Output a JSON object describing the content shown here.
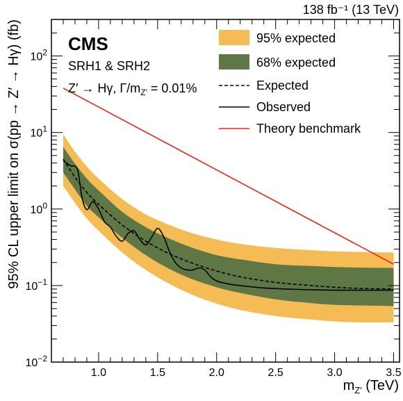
{
  "header": {
    "lumi_label": "138 fb⁻¹ (13 TeV)"
  },
  "labels": {
    "experiment": "CMS",
    "region": "SRH1 & SRH2",
    "process": "Z′ → Hγ,  Γ/mZ′ = 0.01%"
  },
  "chart_data": {
    "type": "line",
    "title": "",
    "xlabel": "mZ′ (TeV)",
    "ylabel": "95% CL upper limit on σ(pp → Z′ → Hγ) (fb)",
    "xlim": [
      0.6,
      3.55
    ],
    "ylim": [
      0.01,
      300
    ],
    "yscale": "log",
    "x_ticks": [
      "1.0",
      "1.5",
      "2.0",
      "2.5",
      "3.0",
      "3.5"
    ],
    "y_ticks": [
      "10⁻²",
      "10⁻¹",
      "10⁰",
      "10¹",
      "10²"
    ],
    "legend_position": "top-right",
    "colors": {
      "band95": "#f5bb54",
      "band68": "#5e7744",
      "theory": "#e8241c",
      "expected": "#000000",
      "observed": "#000000"
    },
    "series": [
      {
        "name": "95% expected",
        "x": [
          0.7,
          0.8,
          0.9,
          1.0,
          1.2,
          1.4,
          1.6,
          1.8,
          2.0,
          2.2,
          2.5,
          2.8,
          3.0,
          3.2,
          3.5
        ],
        "low": [
          2.0,
          1.2,
          0.75,
          0.52,
          0.27,
          0.16,
          0.105,
          0.075,
          0.058,
          0.048,
          0.04,
          0.036,
          0.034,
          0.033,
          0.033
        ],
        "high": [
          9.5,
          5.6,
          3.6,
          2.5,
          1.35,
          0.85,
          0.62,
          0.48,
          0.4,
          0.35,
          0.31,
          0.29,
          0.28,
          0.275,
          0.27
        ]
      },
      {
        "name": "68% expected",
        "x": [
          0.7,
          0.8,
          0.9,
          1.0,
          1.2,
          1.4,
          1.6,
          1.8,
          2.0,
          2.2,
          2.5,
          2.8,
          3.0,
          3.2,
          3.5
        ],
        "low": [
          3.0,
          1.8,
          1.1,
          0.78,
          0.42,
          0.25,
          0.165,
          0.12,
          0.095,
          0.08,
          0.066,
          0.059,
          0.056,
          0.055,
          0.054
        ],
        "high": [
          6.5,
          3.9,
          2.5,
          1.75,
          0.92,
          0.58,
          0.41,
          0.31,
          0.25,
          0.22,
          0.19,
          0.18,
          0.175,
          0.172,
          0.17
        ]
      },
      {
        "name": "Expected",
        "x": [
          0.7,
          0.8,
          0.9,
          1.0,
          1.2,
          1.4,
          1.6,
          1.8,
          2.0,
          2.2,
          2.5,
          2.8,
          3.0,
          3.2,
          3.5
        ],
        "values": [
          4.5,
          2.6,
          1.65,
          1.15,
          0.62,
          0.38,
          0.26,
          0.195,
          0.155,
          0.13,
          0.11,
          0.1,
          0.095,
          0.092,
          0.09
        ]
      },
      {
        "name": "Observed",
        "x": [
          0.7,
          0.76,
          0.82,
          0.86,
          0.9,
          0.95,
          1.0,
          1.05,
          1.1,
          1.15,
          1.2,
          1.25,
          1.3,
          1.35,
          1.4,
          1.45,
          1.5,
          1.55,
          1.6,
          1.65,
          1.7,
          1.75,
          1.8,
          1.85,
          1.9,
          1.95,
          2.0,
          2.1,
          2.2,
          2.4,
          2.6,
          2.8,
          3.0,
          3.2,
          3.5
        ],
        "values": [
          4.3,
          3.7,
          3.3,
          1.4,
          0.98,
          1.25,
          1.0,
          0.68,
          0.58,
          0.44,
          0.38,
          0.48,
          0.52,
          0.4,
          0.34,
          0.43,
          0.56,
          0.44,
          0.28,
          0.2,
          0.17,
          0.16,
          0.16,
          0.17,
          0.16,
          0.13,
          0.115,
          0.105,
          0.1,
          0.093,
          0.09,
          0.088,
          0.087,
          0.087,
          0.087
        ]
      },
      {
        "name": "Theory benchmark",
        "x": [
          0.7,
          3.5
        ],
        "values": [
          38,
          0.19
        ]
      }
    ]
  }
}
